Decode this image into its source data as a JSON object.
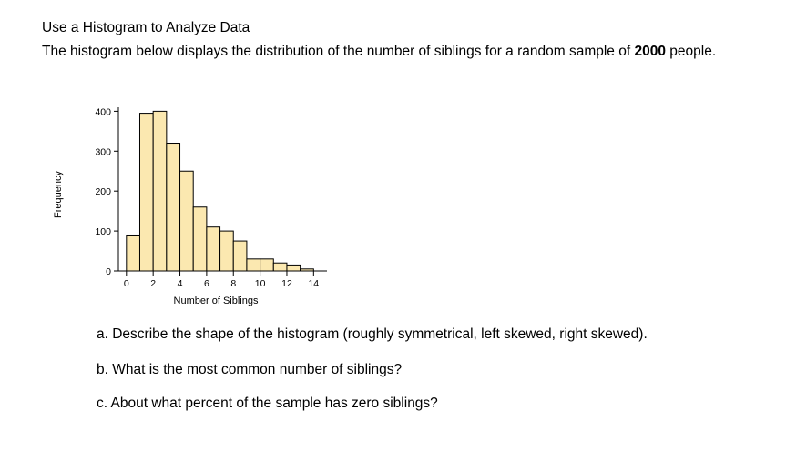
{
  "heading": "Use a Histogram to Analyze Data",
  "intro": {
    "text_before": "The histogram below displays the distribution of the number of siblings for a random sample of ",
    "sample_size": "2000",
    "text_after": " people."
  },
  "questions": {
    "a": "a. Describe the shape of the histogram (roughly symmetrical, left skewed, right skewed).",
    "b": "b. What is the most common number of siblings?",
    "c": "c. About what percent of the sample has zero siblings?"
  },
  "chart_data": {
    "type": "bar",
    "title": "",
    "xlabel": "Number of Siblings",
    "ylabel": "Frequency",
    "bin_width": 1,
    "bins": [
      {
        "start": 0,
        "end": 1,
        "value": 90
      },
      {
        "start": 1,
        "end": 2,
        "value": 395
      },
      {
        "start": 2,
        "end": 3,
        "value": 400
      },
      {
        "start": 3,
        "end": 4,
        "value": 320
      },
      {
        "start": 4,
        "end": 5,
        "value": 250
      },
      {
        "start": 5,
        "end": 6,
        "value": 160
      },
      {
        "start": 6,
        "end": 7,
        "value": 110
      },
      {
        "start": 7,
        "end": 8,
        "value": 100
      },
      {
        "start": 8,
        "end": 9,
        "value": 75
      },
      {
        "start": 9,
        "end": 10,
        "value": 30
      },
      {
        "start": 10,
        "end": 11,
        "value": 30
      },
      {
        "start": 11,
        "end": 12,
        "value": 20
      },
      {
        "start": 12,
        "end": 13,
        "value": 15
      },
      {
        "start": 13,
        "end": 14,
        "value": 5
      }
    ],
    "xlim": [
      -0.6,
      15
    ],
    "ylim": [
      0,
      410
    ],
    "xticks": [
      0,
      2,
      4,
      6,
      8,
      10,
      12,
      14
    ],
    "yticks": [
      0,
      100,
      200,
      300,
      400
    ],
    "bar_fill": "#fbe8b0",
    "bar_stroke": "#000000",
    "grid": false
  }
}
